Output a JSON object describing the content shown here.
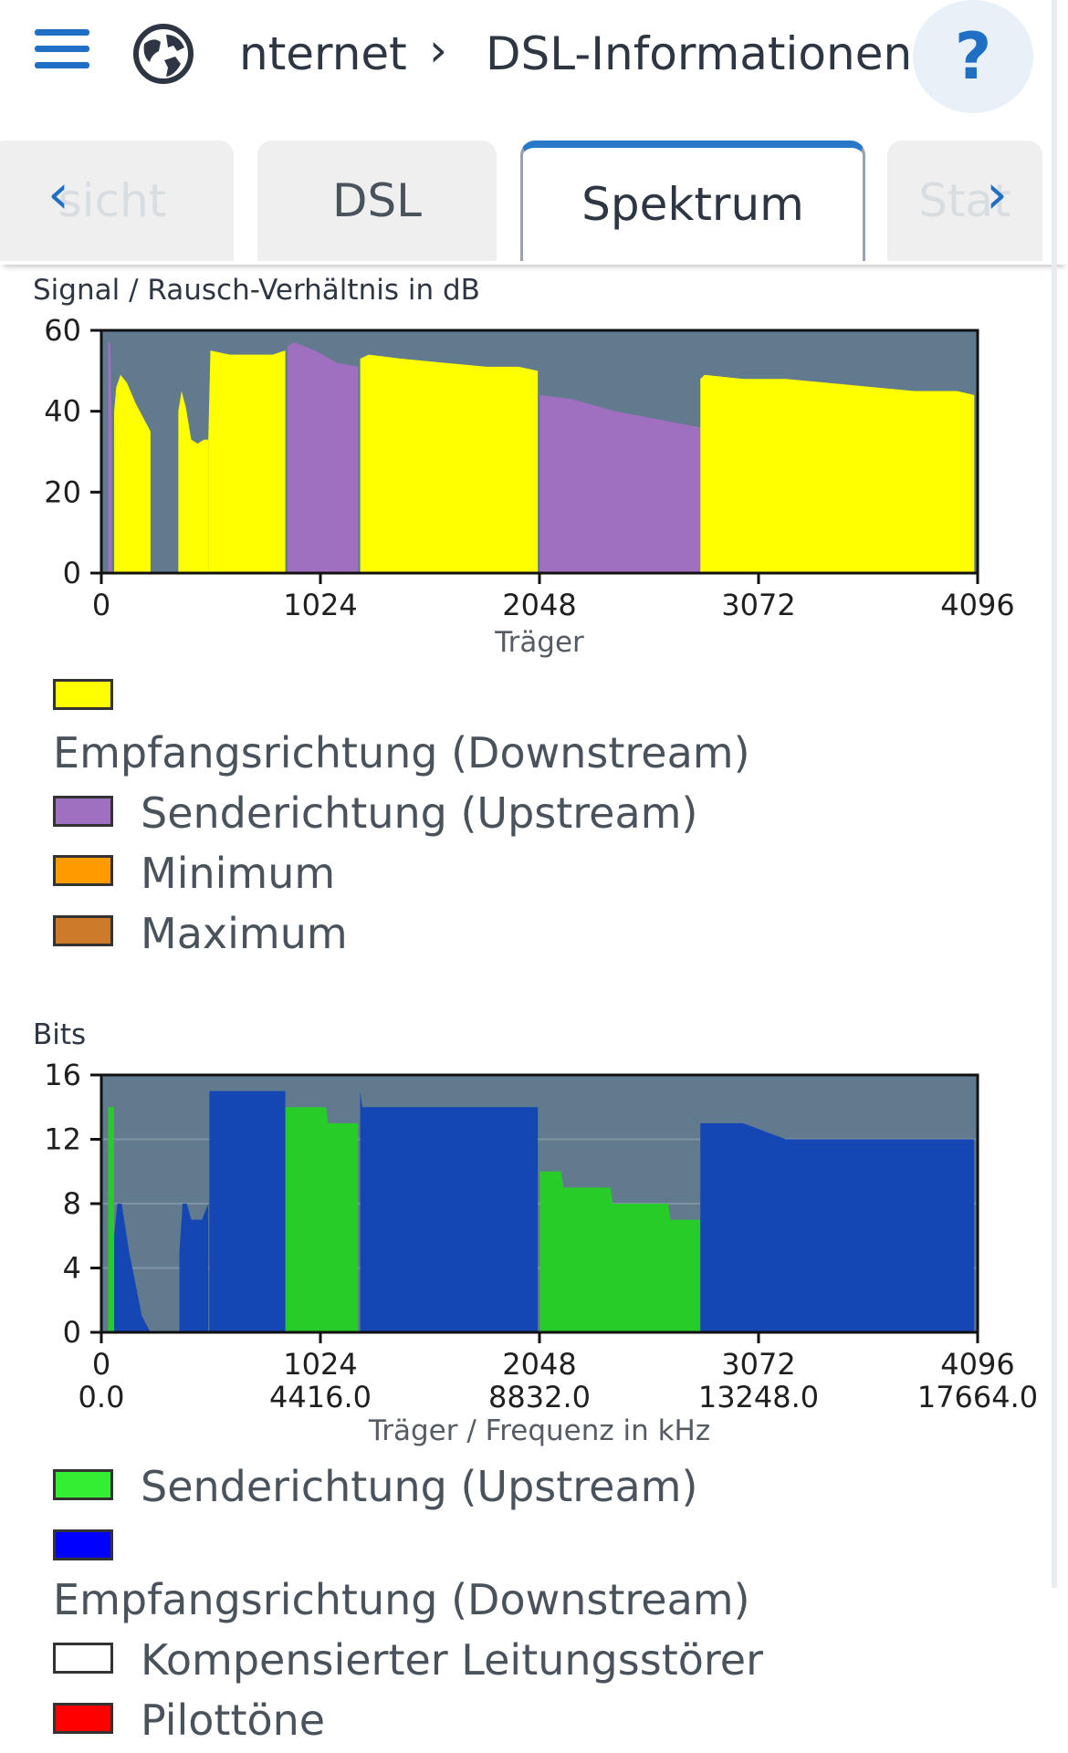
{
  "header": {
    "menu_icon": "menu-icon",
    "globe_icon": "globe-icon",
    "breadcrumb_first": "nternet",
    "breadcrumb_sep": "›",
    "breadcrumb_current": "DSL-Informationen",
    "help_label": "?"
  },
  "tabs": {
    "items": [
      {
        "label": "sicht"
      },
      {
        "label": "DSL"
      },
      {
        "label": "Spektrum"
      },
      {
        "label": "Stat"
      }
    ],
    "active_index": 2,
    "prev_icon": "chevron-left-icon",
    "next_icon": "chevron-right-icon"
  },
  "snr_chart": {
    "title": "Signal / Rausch-Verhältnis in dB",
    "xlabel": "Träger",
    "legend": [
      {
        "label": "Empfangsrichtung (Downstream)",
        "color": "#ffff00"
      },
      {
        "label": "Senderichtung (Upstream)",
        "color": "#a070c0"
      },
      {
        "label": "Minimum",
        "color": "#ff9a00"
      },
      {
        "label": "Maximum",
        "color": "#cd7a2a"
      }
    ]
  },
  "bits_chart": {
    "title": "Bits",
    "xlabel": "Träger / Frequenz in kHz",
    "legend": [
      {
        "label": "Senderichtung (Upstream)",
        "color": "#33ee33"
      },
      {
        "label": "Empfangsrichtung (Downstream)",
        "color": "#0000ff"
      },
      {
        "label": "Kompensierter Leitungsstörer",
        "color": "#ffffff"
      },
      {
        "label": "Pilottöne",
        "color": "#ff0000"
      }
    ]
  },
  "chart_data": [
    {
      "type": "area",
      "title": "Signal / Rausch-Verhältnis in dB",
      "xlabel": "Träger",
      "ylabel": "",
      "xlim": [
        0,
        4096
      ],
      "ylim": [
        0,
        60
      ],
      "xticks": [
        0,
        1024,
        2048,
        3072,
        4096
      ],
      "yticks": [
        0,
        20,
        40,
        60
      ],
      "background": "#627a8e",
      "series": [
        {
          "name": "Senderichtung (Upstream)",
          "color": "#a070c0",
          "segments": [
            {
              "x": [
                32,
                42,
                50
              ],
              "y": [
                57,
                57,
                30
              ]
            },
            {
              "x": [
                870,
                900,
                1000,
                1100,
                1200
              ],
              "y": [
                56,
                57,
                55,
                52,
                51
              ]
            },
            {
              "x": [
                2050,
                2200,
                2400,
                2600,
                2800
              ],
              "y": [
                44,
                43,
                40,
                38,
                36
              ]
            }
          ]
        },
        {
          "name": "Empfangsrichtung (Downstream)",
          "color": "#ffff00",
          "segments": [
            {
              "x": [
                60,
                70,
                90,
                120,
                160,
                200,
                230
              ],
              "y": [
                40,
                46,
                49,
                47,
                42,
                38,
                35
              ]
            },
            {
              "x": [
                360,
                375,
                395,
                420,
                450,
                480,
                500
              ],
              "y": [
                40,
                45,
                41,
                33,
                32,
                33,
                33
              ]
            },
            {
              "x": [
                500,
                510,
                600,
                700,
                800,
                860
              ],
              "y": [
                33,
                55,
                54,
                54,
                54,
                55
              ]
            },
            {
              "x": [
                1210,
                1250,
                1400,
                1600,
                1800,
                1950,
                2040
              ],
              "y": [
                53,
                54,
                53,
                52,
                51,
                51,
                50
              ]
            },
            {
              "x": [
                2800,
                2820,
                3000,
                3200,
                3400,
                3600,
                3800,
                4000,
                4080
              ],
              "y": [
                48,
                49,
                48,
                48,
                47,
                46,
                45,
                45,
                44
              ]
            }
          ]
        },
        {
          "name": "Minimum",
          "color": "#ff9a00",
          "segments": []
        },
        {
          "name": "Maximum",
          "color": "#cd7a2a",
          "segments": []
        }
      ],
      "legend": "below"
    },
    {
      "type": "area",
      "title": "Bits",
      "xlabel": "Träger / Frequenz in kHz",
      "ylabel": "",
      "xlim": [
        0,
        4096
      ],
      "ylim": [
        0,
        16
      ],
      "xticks": [
        0,
        1024,
        2048,
        3072,
        4096
      ],
      "xticks_secondary": [
        "0.0",
        "4416.0",
        "8832.0",
        "13248.0",
        "17664.0"
      ],
      "yticks": [
        0,
        4,
        8,
        12,
        16
      ],
      "grid": true,
      "background": "#627a8e",
      "series": [
        {
          "name": "Senderichtung (Upstream)",
          "color": "#28cc28",
          "segments": [
            {
              "x": [
                32,
                60
              ],
              "y": [
                14,
                14
              ]
            },
            {
              "x": [
                860,
                1050,
                1060,
                1200
              ],
              "y": [
                14,
                14,
                13,
                13
              ]
            },
            {
              "x": [
                2050,
                2150,
                2160,
                2380,
                2390,
                2650,
                2660,
                2800
              ],
              "y": [
                10,
                10,
                9,
                9,
                8,
                8,
                7,
                7
              ]
            }
          ]
        },
        {
          "name": "Empfangsrichtung (Downstream)",
          "color": "#1446b4",
          "segments": [
            {
              "x": [
                60,
                75,
                95,
                130,
                160,
                190,
                230
              ],
              "y": [
                6,
                8,
                8,
                5,
                3,
                1,
                0
              ]
            },
            {
              "x": [
                365,
                380,
                400,
                420,
                440,
                470,
                500
              ],
              "y": [
                5,
                8,
                8,
                7,
                7,
                7,
                8
              ]
            },
            {
              "x": [
                505,
                515,
                860
              ],
              "y": [
                15,
                15,
                15
              ]
            },
            {
              "x": [
                1210,
                1220,
                1400,
                1600,
                1800,
                1950,
                2040
              ],
              "y": [
                15,
                14,
                14,
                14,
                14,
                14,
                14
              ]
            },
            {
              "x": [
                2800,
                2810,
                3000,
                3200,
                3400,
                3600,
                3800,
                4000,
                4080
              ],
              "y": [
                13,
                13,
                13,
                12,
                12,
                12,
                12,
                12,
                12
              ]
            }
          ]
        },
        {
          "name": "Kompensierter Leitungsstörer",
          "color": "#ffffff",
          "segments": []
        },
        {
          "name": "Pilottöne",
          "color": "#ff0000",
          "segments": []
        }
      ],
      "legend": "below"
    }
  ]
}
